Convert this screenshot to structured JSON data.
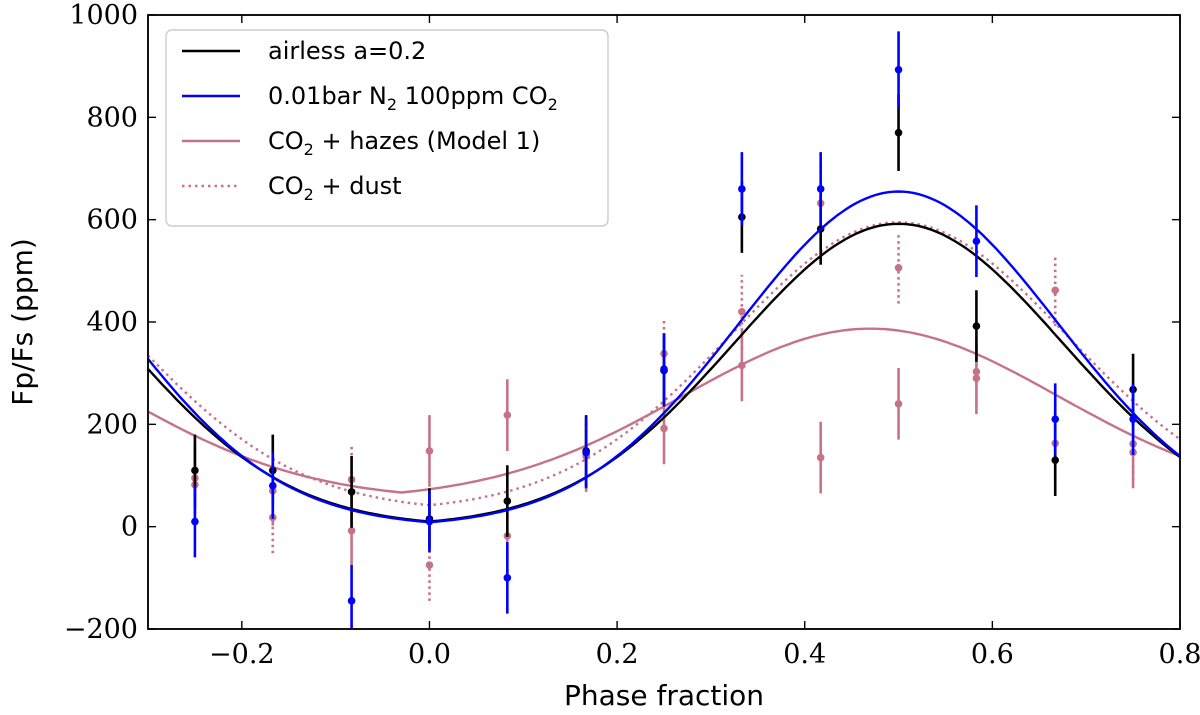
{
  "chart_data": {
    "type": "line",
    "xlabel": "Phase fraction",
    "ylabel": "Fp/Fs (ppm)",
    "xlim": [
      -0.3,
      0.8
    ],
    "ylim": [
      -200,
      1000
    ],
    "xticks": [
      -0.2,
      0.0,
      0.2,
      0.4,
      0.6,
      0.8
    ],
    "xtick_labels": [
      "−0.2",
      "0.0",
      "0.2",
      "0.4",
      "0.6",
      "0.8"
    ],
    "yticks": [
      -200,
      0,
      200,
      400,
      600,
      800,
      1000
    ],
    "ytick_labels": [
      "−200",
      "0",
      "200",
      "400",
      "600",
      "800",
      "1000"
    ],
    "legend_position": "top-left",
    "series": [
      {
        "name": "airless a=0.2",
        "legend_parts": [
          "airless a=0.2"
        ],
        "color": "#000000",
        "style": "solid",
        "model": {
          "offset": 0,
          "amplitude": 592,
          "peak_phase": 0.5,
          "width": 0.175,
          "floor": 0
        },
        "points": [
          {
            "x": -0.25,
            "y": 110,
            "err": 70
          },
          {
            "x": -0.167,
            "y": 110,
            "err": 70
          },
          {
            "x": -0.083,
            "y": 68,
            "err": 70
          },
          {
            "x": 0.0,
            "y": 15,
            "err": 60
          },
          {
            "x": 0.083,
            "y": 50,
            "err": 70
          },
          {
            "x": 0.167,
            "y": 148,
            "err": 70
          },
          {
            "x": 0.25,
            "y": 305,
            "err": 70
          },
          {
            "x": 0.333,
            "y": 605,
            "err": 70
          },
          {
            "x": 0.417,
            "y": 582,
            "err": 70
          },
          {
            "x": 0.5,
            "y": 770,
            "err": 75
          },
          {
            "x": 0.583,
            "y": 392,
            "err": 70
          },
          {
            "x": 0.667,
            "y": 130,
            "err": 70
          },
          {
            "x": 0.75,
            "y": 268,
            "err": 70
          }
        ]
      },
      {
        "name": "0.01bar N2 100ppm CO2",
        "legend_parts": [
          "0.01bar N",
          "2",
          " 100ppm CO",
          "2"
        ],
        "color": "#0000ff",
        "style": "solid",
        "model": {
          "offset": 0,
          "amplitude": 655,
          "peak_phase": 0.5,
          "width": 0.17,
          "floor": 0
        },
        "points": [
          {
            "x": -0.25,
            "y": 10,
            "err": 70
          },
          {
            "x": -0.167,
            "y": 80,
            "err": 65
          },
          {
            "x": -0.083,
            "y": -145,
            "err": 70
          },
          {
            "x": 0.0,
            "y": 10,
            "err": 60
          },
          {
            "x": 0.083,
            "y": -100,
            "err": 70
          },
          {
            "x": 0.167,
            "y": 145,
            "err": 70
          },
          {
            "x": 0.25,
            "y": 308,
            "err": 70
          },
          {
            "x": 0.333,
            "y": 660,
            "err": 72
          },
          {
            "x": 0.417,
            "y": 660,
            "err": 72
          },
          {
            "x": 0.5,
            "y": 893,
            "err": 75
          },
          {
            "x": 0.583,
            "y": 558,
            "err": 70
          },
          {
            "x": 0.667,
            "y": 210,
            "err": 70
          },
          {
            "x": 0.75,
            "y": 210,
            "err": 70
          }
        ]
      },
      {
        "name": "CO2 + hazes (Model 1)",
        "legend_parts": [
          "CO",
          "2",
          " + hazes (Model 1)"
        ],
        "color": "#c67389",
        "style": "solid",
        "model": {
          "offset": 52,
          "amplitude": 335,
          "peak_phase": 0.47,
          "width": 0.2,
          "floor": 0
        },
        "points": [
          {
            "x": -0.25,
            "y": 95,
            "err": 70
          },
          {
            "x": -0.167,
            "y": 70,
            "err": 68
          },
          {
            "x": -0.083,
            "y": -8,
            "err": 68
          },
          {
            "x": 0.0,
            "y": 148,
            "err": 70
          },
          {
            "x": 0.083,
            "y": 218,
            "err": 70
          },
          {
            "x": 0.167,
            "y": 140,
            "err": 68
          },
          {
            "x": 0.25,
            "y": 192,
            "err": 70
          },
          {
            "x": 0.333,
            "y": 315,
            "err": 70
          },
          {
            "x": 0.417,
            "y": 135,
            "err": 70
          },
          {
            "x": 0.5,
            "y": 240,
            "err": 70
          },
          {
            "x": 0.583,
            "y": 290,
            "err": 70
          },
          {
            "x": 0.667,
            "y": 163,
            "err": 70
          },
          {
            "x": 0.75,
            "y": 145,
            "err": 70
          }
        ]
      },
      {
        "name": "CO2 + dust",
        "legend_parts": [
          "CO",
          "2",
          " + dust"
        ],
        "color": "#c67389",
        "style": "dotted",
        "model": {
          "offset": 30,
          "amplitude": 565,
          "peak_phase": 0.5,
          "width": 0.18,
          "floor": 0
        },
        "points": [
          {
            "x": -0.25,
            "y": 82,
            "err": 70
          },
          {
            "x": -0.167,
            "y": 18,
            "err": 70
          },
          {
            "x": -0.083,
            "y": 92,
            "err": 70
          },
          {
            "x": 0.0,
            "y": -75,
            "err": 70
          },
          {
            "x": 0.083,
            "y": -18,
            "err": 70
          },
          {
            "x": 0.167,
            "y": 138,
            "err": 70
          },
          {
            "x": 0.25,
            "y": 338,
            "err": 70
          },
          {
            "x": 0.333,
            "y": 420,
            "err": 72
          },
          {
            "x": 0.417,
            "y": 632,
            "err": 72
          },
          {
            "x": 0.5,
            "y": 506,
            "err": 70
          },
          {
            "x": 0.583,
            "y": 303,
            "err": 70
          },
          {
            "x": 0.667,
            "y": 462,
            "err": 70
          },
          {
            "x": 0.75,
            "y": 162,
            "err": 70
          }
        ]
      }
    ]
  }
}
